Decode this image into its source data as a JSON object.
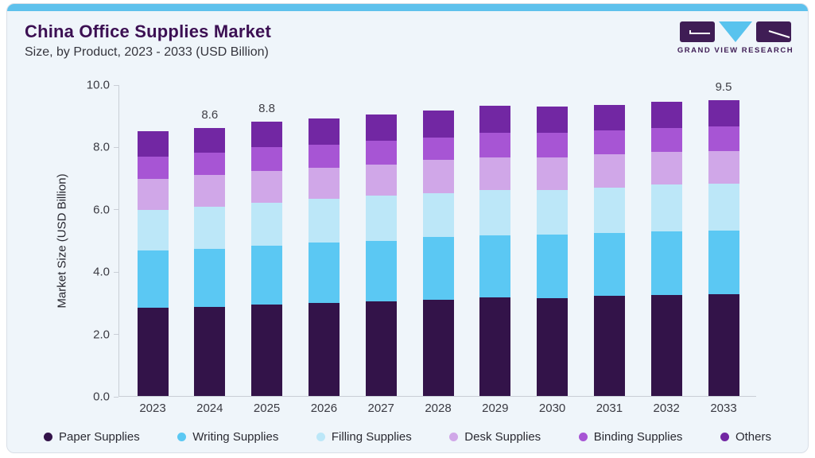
{
  "page": {
    "title": "China Office Supplies Market",
    "subtitle": "Size, by Product, 2023 - 2033 (USD Billion)"
  },
  "logo": {
    "text": "GRAND VIEW RESEARCH",
    "mark_color": "#3f1d55",
    "triangle_color": "#58c3ee"
  },
  "chart_data": {
    "type": "bar",
    "stacked": true,
    "title": "China Office Supplies Market Size, by Product, 2023 - 2033 (USD Billion)",
    "xlabel": "",
    "ylabel": "Market Size (USD Billion)",
    "ylim": [
      0,
      10
    ],
    "yticks": [
      "0.0",
      "2.0",
      "4.0",
      "6.0",
      "8.0",
      "10.0"
    ],
    "grid": false,
    "legend_position": "bottom",
    "categories": [
      "2023",
      "2024",
      "2025",
      "2026",
      "2027",
      "2028",
      "2029",
      "2030",
      "2031",
      "2032",
      "2033"
    ],
    "series": [
      {
        "name": "Paper Supplies",
        "color": "#331349",
        "values": [
          2.82,
          2.86,
          2.94,
          2.99,
          3.04,
          3.08,
          3.16,
          3.15,
          3.21,
          3.25,
          3.27
        ]
      },
      {
        "name": "Writing Supplies",
        "color": "#5bc8f3",
        "values": [
          1.86,
          1.85,
          1.89,
          1.94,
          1.94,
          2.02,
          2.0,
          2.02,
          2.02,
          2.02,
          2.04
        ]
      },
      {
        "name": "Filling Supplies",
        "color": "#bce7f8",
        "values": [
          1.29,
          1.36,
          1.38,
          1.39,
          1.44,
          1.4,
          1.45,
          1.45,
          1.45,
          1.52,
          1.5
        ]
      },
      {
        "name": "Desk Supplies",
        "color": "#d0a7e8",
        "values": [
          0.99,
          1.01,
          1.01,
          1.01,
          1.01,
          1.08,
          1.05,
          1.04,
          1.08,
          1.05,
          1.06
        ]
      },
      {
        "name": "Binding Supplies",
        "color": "#a755d4",
        "values": [
          0.71,
          0.72,
          0.76,
          0.72,
          0.75,
          0.72,
          0.79,
          0.78,
          0.76,
          0.77,
          0.78
        ]
      },
      {
        "name": "Others",
        "color": "#7227a3",
        "values": [
          0.83,
          0.8,
          0.82,
          0.85,
          0.84,
          0.85,
          0.85,
          0.84,
          0.83,
          0.84,
          0.85
        ]
      }
    ],
    "bar_total_labels": [
      "",
      "8.6",
      "8.8",
      "",
      "",
      "",
      "",
      "",
      "",
      "",
      "9.5"
    ],
    "axis_color": "#c9ced6"
  }
}
